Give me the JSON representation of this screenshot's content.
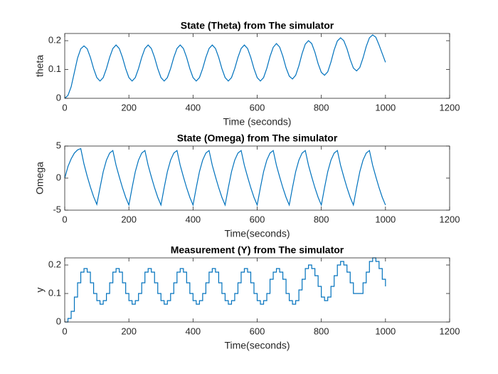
{
  "chart_data": [
    {
      "type": "line",
      "title": "State (Theta) from The simulator",
      "x_label": "Time (seconds)",
      "y_label": "theta",
      "color": "#0072bd",
      "step": false,
      "xlim": [
        0,
        1200
      ],
      "xticks": [
        0,
        200,
        400,
        600,
        800,
        1000,
        1200
      ],
      "ylim": [
        0,
        0.225
      ],
      "yticks": [
        0,
        0.1,
        0.2
      ],
      "x": [
        0,
        10,
        20,
        30,
        40,
        50,
        60,
        70,
        80,
        90,
        100,
        110,
        120,
        130,
        140,
        150,
        160,
        170,
        180,
        190,
        200,
        210,
        220,
        230,
        240,
        250,
        260,
        270,
        280,
        290,
        300,
        310,
        320,
        330,
        340,
        350,
        360,
        370,
        380,
        390,
        400,
        410,
        420,
        430,
        440,
        450,
        460,
        470,
        480,
        490,
        500,
        510,
        520,
        530,
        540,
        550,
        560,
        570,
        580,
        590,
        600,
        610,
        620,
        630,
        640,
        650,
        660,
        670,
        680,
        690,
        700,
        710,
        720,
        730,
        740,
        750,
        760,
        770,
        780,
        790,
        800,
        810,
        820,
        830,
        840,
        850,
        860,
        870,
        880,
        890,
        900,
        910,
        920,
        930,
        940,
        950,
        960,
        970,
        980,
        990,
        1000
      ],
      "values": [
        0,
        0.01,
        0.04,
        0.09,
        0.14,
        0.172,
        0.182,
        0.172,
        0.142,
        0.103,
        0.072,
        0.06,
        0.072,
        0.103,
        0.142,
        0.173,
        0.185,
        0.173,
        0.142,
        0.103,
        0.072,
        0.06,
        0.072,
        0.103,
        0.142,
        0.173,
        0.185,
        0.173,
        0.142,
        0.103,
        0.072,
        0.06,
        0.072,
        0.103,
        0.142,
        0.173,
        0.185,
        0.173,
        0.142,
        0.103,
        0.072,
        0.06,
        0.072,
        0.103,
        0.142,
        0.173,
        0.185,
        0.173,
        0.142,
        0.103,
        0.072,
        0.06,
        0.072,
        0.103,
        0.142,
        0.173,
        0.185,
        0.173,
        0.142,
        0.103,
        0.072,
        0.06,
        0.072,
        0.104,
        0.145,
        0.177,
        0.19,
        0.178,
        0.146,
        0.106,
        0.077,
        0.067,
        0.08,
        0.113,
        0.155,
        0.188,
        0.2,
        0.19,
        0.16,
        0.12,
        0.09,
        0.08,
        0.092,
        0.126,
        0.168,
        0.199,
        0.21,
        0.2,
        0.172,
        0.135,
        0.105,
        0.095,
        0.107,
        0.14,
        0.18,
        0.21,
        0.22,
        0.212,
        0.185,
        0.155,
        0.125
      ]
    },
    {
      "type": "line",
      "title": "State (Omega) from The simulator",
      "x_label": "Time(seconds)",
      "y_label": "Omega",
      "color": "#0072bd",
      "step": false,
      "xlim": [
        0,
        1200
      ],
      "xticks": [
        0,
        200,
        400,
        600,
        800,
        1000,
        1200
      ],
      "ylim": [
        -5,
        5
      ],
      "yticks": [
        -5,
        0,
        5
      ],
      "x": [
        0,
        10,
        20,
        30,
        40,
        50,
        60,
        70,
        80,
        90,
        100,
        110,
        120,
        130,
        140,
        150,
        160,
        170,
        180,
        190,
        200,
        210,
        220,
        230,
        240,
        250,
        260,
        270,
        280,
        290,
        300,
        310,
        320,
        330,
        340,
        350,
        360,
        370,
        380,
        390,
        400,
        410,
        420,
        430,
        440,
        450,
        460,
        470,
        480,
        490,
        500,
        510,
        520,
        530,
        540,
        550,
        560,
        570,
        580,
        590,
        600,
        610,
        620,
        630,
        640,
        650,
        660,
        670,
        680,
        690,
        700,
        710,
        720,
        730,
        740,
        750,
        760,
        770,
        780,
        790,
        800,
        810,
        820,
        830,
        840,
        850,
        860,
        870,
        880,
        890,
        900,
        910,
        920,
        930,
        940,
        950,
        960,
        970,
        980,
        990,
        1000
      ],
      "values": [
        0,
        1.8,
        3.0,
        3.9,
        4.4,
        4.6,
        2.2,
        0.3,
        -1.4,
        -2.9,
        -4.1,
        -1.5,
        1.0,
        2.8,
        3.9,
        4.3,
        2.0,
        0.2,
        -1.5,
        -3.0,
        -4.2,
        -1.5,
        1.0,
        2.8,
        3.9,
        4.3,
        2.0,
        0.2,
        -1.5,
        -3.0,
        -4.2,
        -1.5,
        1.0,
        2.8,
        3.9,
        4.3,
        2.0,
        0.2,
        -1.5,
        -3.0,
        -4.2,
        -1.5,
        1.0,
        2.8,
        3.9,
        4.3,
        2.0,
        0.2,
        -1.5,
        -3.0,
        -4.2,
        -1.5,
        1.0,
        2.8,
        3.9,
        4.3,
        2.0,
        0.2,
        -1.5,
        -3.0,
        -4.2,
        -1.5,
        1.0,
        2.8,
        3.9,
        4.3,
        2.0,
        0.2,
        -1.5,
        -3.0,
        -4.2,
        -1.5,
        1.0,
        2.8,
        3.9,
        4.3,
        2.0,
        0.2,
        -1.5,
        -3.0,
        -4.2,
        -1.5,
        1.0,
        2.8,
        3.9,
        4.3,
        2.0,
        0.2,
        -1.5,
        -3.0,
        -4.2,
        -1.5,
        1.0,
        2.8,
        3.9,
        4.3,
        2.0,
        0.2,
        -1.5,
        -3.0,
        -4.2
      ]
    },
    {
      "type": "line",
      "title": "Measurement (Y) from The simulator",
      "x_label": "Time(seconds)",
      "y_label": "y",
      "color": "#0072bd",
      "step": true,
      "xlim": [
        0,
        1200
      ],
      "xticks": [
        0,
        200,
        400,
        600,
        800,
        1000,
        1200
      ],
      "ylim": [
        0,
        0.225
      ],
      "yticks": [
        0,
        0.1,
        0.2
      ],
      "x": [
        0,
        10,
        20,
        30,
        40,
        50,
        60,
        70,
        80,
        90,
        100,
        110,
        120,
        130,
        140,
        150,
        160,
        170,
        180,
        190,
        200,
        210,
        220,
        230,
        240,
        250,
        260,
        270,
        280,
        290,
        300,
        310,
        320,
        330,
        340,
        350,
        360,
        370,
        380,
        390,
        400,
        410,
        420,
        430,
        440,
        450,
        460,
        470,
        480,
        490,
        500,
        510,
        520,
        530,
        540,
        550,
        560,
        570,
        580,
        590,
        600,
        610,
        620,
        630,
        640,
        650,
        660,
        670,
        680,
        690,
        700,
        710,
        720,
        730,
        740,
        750,
        760,
        770,
        780,
        790,
        800,
        810,
        820,
        830,
        840,
        850,
        860,
        870,
        880,
        890,
        900,
        910,
        920,
        930,
        940,
        950,
        960,
        970,
        980,
        990,
        1000
      ],
      "values": [
        0,
        0.0125,
        0.0375,
        0.0875,
        0.1375,
        0.175,
        0.1875,
        0.175,
        0.1375,
        0.1,
        0.075,
        0.0625,
        0.075,
        0.1,
        0.1375,
        0.175,
        0.1875,
        0.175,
        0.1375,
        0.1,
        0.075,
        0.0625,
        0.075,
        0.1,
        0.1375,
        0.175,
        0.1875,
        0.175,
        0.1375,
        0.1,
        0.075,
        0.0625,
        0.075,
        0.1,
        0.1375,
        0.175,
        0.1875,
        0.175,
        0.1375,
        0.1,
        0.075,
        0.0625,
        0.075,
        0.1,
        0.1375,
        0.175,
        0.1875,
        0.175,
        0.1375,
        0.1,
        0.075,
        0.0625,
        0.075,
        0.1,
        0.1375,
        0.175,
        0.1875,
        0.175,
        0.1375,
        0.1,
        0.075,
        0.0625,
        0.075,
        0.1,
        0.15,
        0.175,
        0.1875,
        0.175,
        0.15,
        0.1,
        0.075,
        0.0625,
        0.075,
        0.1125,
        0.15,
        0.1875,
        0.2,
        0.1875,
        0.1625,
        0.125,
        0.0875,
        0.075,
        0.0875,
        0.125,
        0.1625,
        0.2,
        0.2125,
        0.2,
        0.175,
        0.1375,
        0.1,
        0.1,
        0.1,
        0.1375,
        0.175,
        0.2125,
        0.225,
        0.2125,
        0.1875,
        0.15,
        0.125
      ]
    }
  ]
}
